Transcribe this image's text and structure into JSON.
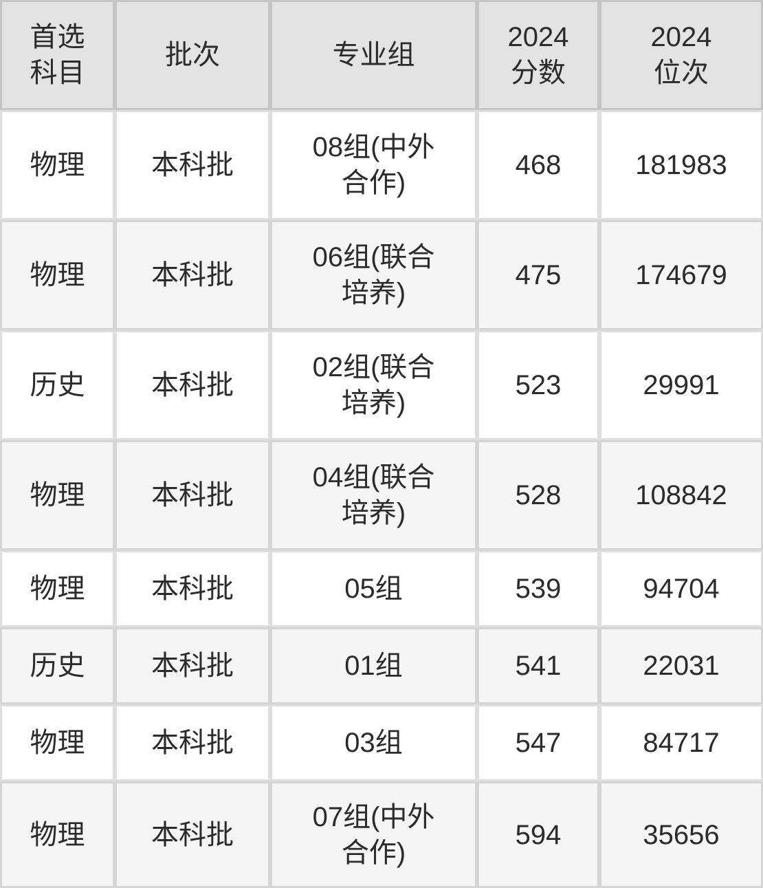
{
  "colors": {
    "header_bg": "#e3e3e3",
    "row_bg": "#ffffff",
    "row_alt_bg": "#f5f5f5",
    "grid_line": "rgba(0,0,0,0.13)",
    "text": "#2b2b2b"
  },
  "table": {
    "headers": {
      "subject": "首选\n科目",
      "batch": "批次",
      "group": "专业组",
      "score": "2024\n分数",
      "rank": "2024\n位次"
    },
    "rows": [
      {
        "subject": "物理",
        "batch": "本科批",
        "group": "08组(中外\n合作)",
        "score": "468",
        "rank": "181983"
      },
      {
        "subject": "物理",
        "batch": "本科批",
        "group": "06组(联合\n培养)",
        "score": "475",
        "rank": "174679"
      },
      {
        "subject": "历史",
        "batch": "本科批",
        "group": "02组(联合\n培养)",
        "score": "523",
        "rank": "29991"
      },
      {
        "subject": "物理",
        "batch": "本科批",
        "group": "04组(联合\n培养)",
        "score": "528",
        "rank": "108842"
      },
      {
        "subject": "物理",
        "batch": "本科批",
        "group": "05组",
        "score": "539",
        "rank": "94704"
      },
      {
        "subject": "历史",
        "batch": "本科批",
        "group": "01组",
        "score": "541",
        "rank": "22031"
      },
      {
        "subject": "物理",
        "batch": "本科批",
        "group": "03组",
        "score": "547",
        "rank": "84717"
      },
      {
        "subject": "物理",
        "batch": "本科批",
        "group": "07组(中外\n合作)",
        "score": "594",
        "rank": "35656"
      }
    ]
  }
}
